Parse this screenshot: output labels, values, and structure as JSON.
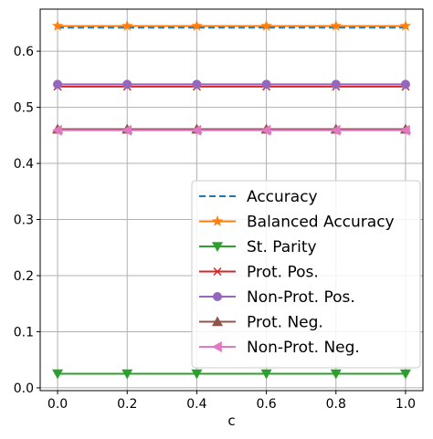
{
  "chart_data": {
    "type": "line",
    "title": "",
    "xlabel": "c",
    "ylabel": "",
    "xlim": [
      -0.05,
      1.05
    ],
    "ylim": [
      -0.005,
      0.675
    ],
    "grid": true,
    "legend_position": "lower-right",
    "x": [
      0.0,
      0.2,
      0.4,
      0.6,
      0.8,
      1.0
    ],
    "xticks": [
      "0.0",
      "0.2",
      "0.4",
      "0.6",
      "0.8",
      "1.0"
    ],
    "yticks": [
      "0.0",
      "0.1",
      "0.2",
      "0.3",
      "0.4",
      "0.5",
      "0.6"
    ],
    "series": [
      {
        "name": "Accuracy",
        "values": [
          0.642,
          0.642,
          0.642,
          0.642,
          0.642,
          0.642
        ],
        "color": "#1f77b4",
        "marker": "none",
        "dash": true
      },
      {
        "name": "Balanced Accuracy",
        "values": [
          0.645,
          0.645,
          0.645,
          0.645,
          0.645,
          0.645
        ],
        "color": "#ff7f0e",
        "marker": "star",
        "dash": false
      },
      {
        "name": "St. Parity",
        "values": [
          0.025,
          0.025,
          0.025,
          0.025,
          0.025,
          0.025
        ],
        "color": "#2ca02c",
        "marker": "triangle-down",
        "dash": false
      },
      {
        "name": "Prot. Pos.",
        "values": [
          0.537,
          0.537,
          0.537,
          0.537,
          0.537,
          0.537
        ],
        "color": "#d62728",
        "marker": "x",
        "dash": false
      },
      {
        "name": "Non-Prot. Pos.",
        "values": [
          0.541,
          0.541,
          0.541,
          0.541,
          0.541,
          0.541
        ],
        "color": "#9467bd",
        "marker": "circle",
        "dash": false
      },
      {
        "name": "Prot. Neg.",
        "values": [
          0.461,
          0.461,
          0.461,
          0.461,
          0.461,
          0.461
        ],
        "color": "#8c564b",
        "marker": "triangle-up",
        "dash": false
      },
      {
        "name": "Non-Prot. Neg.",
        "values": [
          0.459,
          0.459,
          0.459,
          0.459,
          0.459,
          0.459
        ],
        "color": "#e377c2",
        "marker": "triangle-left",
        "dash": false
      }
    ]
  }
}
